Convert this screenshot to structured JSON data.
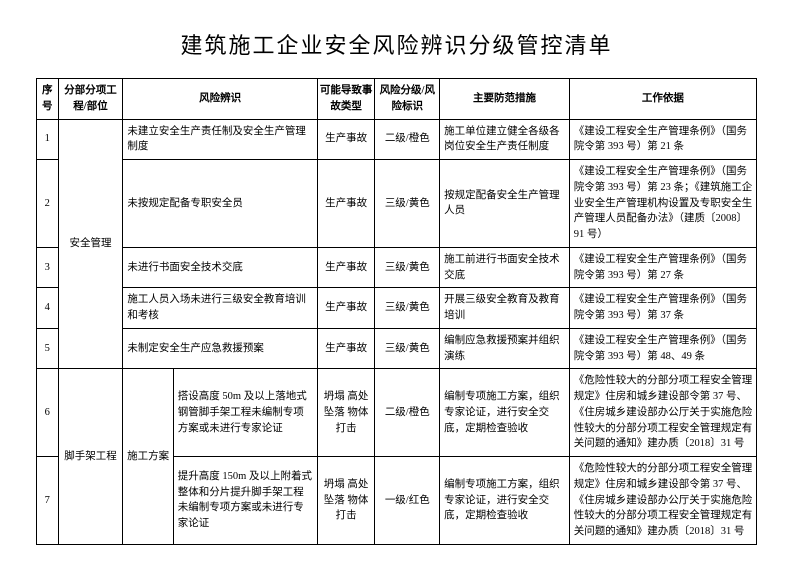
{
  "title": "建筑施工企业安全风险辨识分级管控清单",
  "headers": {
    "seq": "序号",
    "section": "分部分项工程/部位",
    "risk": "风险辨识",
    "accident": "可能导致事故类型",
    "level": "风险分级/风险标识",
    "measure": "主要防范措施",
    "basis": "工作依据"
  },
  "sections": {
    "safety": "安全管理",
    "scaffold": "脚手架工程",
    "scheme": "施工方案"
  },
  "rows": [
    {
      "seq": "1",
      "risk2": "未建立安全生产责任制及安全生产管理制度",
      "accident": "生产事故",
      "level": "二级/橙色",
      "measure": "施工单位建立健全各级各岗位安全生产责任制度",
      "basis": "《建设工程安全生产管理条例》（国务院令第 393 号）第 21 条"
    },
    {
      "seq": "2",
      "risk2": "未按规定配备专职安全员",
      "accident": "生产事故",
      "level": "三级/黄色",
      "measure": "按规定配备安全生产管理人员",
      "basis": "《建设工程安全生产管理条例》（国务院令第 393 号）第 23 条；《建筑施工企业安全生产管理机构设置及专职安全生产管理人员配备办法》（建质〔2008〕91 号）"
    },
    {
      "seq": "3",
      "risk2": "未进行书面安全技术交底",
      "accident": "生产事故",
      "level": "三级/黄色",
      "measure": "施工前进行书面安全技术交底",
      "basis": "《建设工程安全生产管理条例》（国务院令第 393 号）第 27 条"
    },
    {
      "seq": "4",
      "risk2": "施工人员入场未进行三级安全教育培训和考核",
      "accident": "生产事故",
      "level": "三级/黄色",
      "measure": "开展三级安全教育及教育培训",
      "basis": "《建设工程安全生产管理条例》（国务院令第 393 号）第 37 条"
    },
    {
      "seq": "5",
      "risk2": "未制定安全生产应急救援预案",
      "accident": "生产事故",
      "level": "三级/黄色",
      "measure": "编制应急救援预案并组织演练",
      "basis": "《建设工程安全生产管理条例》（国务院令第 393 号）第 48、49 条"
    },
    {
      "seq": "6",
      "risk2": "搭设高度 50m 及以上落地式钢管脚手架工程未编制专项方案或未进行专家论证",
      "accident": "坍塌 高处坠落 物体打击",
      "level": "二级/橙色",
      "measure": "编制专项施工方案，组织专家论证，进行安全交底，定期检查验收",
      "basis": "《危险性较大的分部分项工程安全管理规定》住房和城乡建设部令第 37 号、《住房城乡建设部办公厅关于实施危险性较大的分部分项工程安全管理规定有关问题的通知》建办质〔2018〕31 号"
    },
    {
      "seq": "7",
      "risk2": "提升高度 150m 及以上附着式整体和分片提升脚手架工程未编制专项方案或未进行专家论证",
      "accident": "坍塌 高处坠落 物体打击",
      "level": "一级/红色",
      "measure": "编制专项施工方案，组织专家论证，进行安全交底，定期检查验收",
      "basis": "《危险性较大的分部分项工程安全管理规定》住房和城乡建设部令第 37 号、《住房城乡建设部办公厅关于实施危险性较大的分部分项工程安全管理规定有关问题的通知》建办质〔2018〕31 号"
    }
  ]
}
